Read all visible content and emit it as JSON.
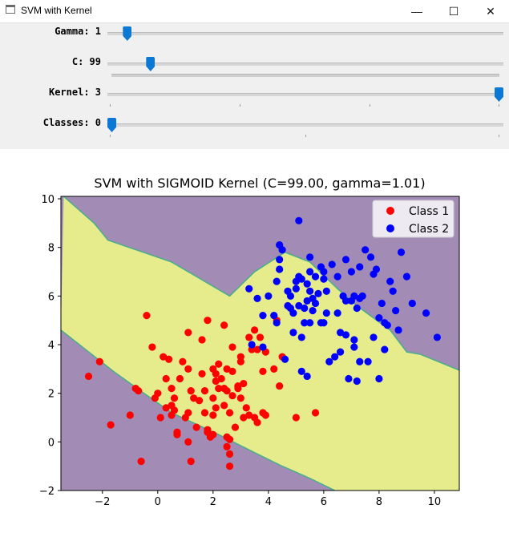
{
  "window": {
    "title": "SVM with Kernel",
    "minimize_glyph": "—",
    "maximize_glyph": "☐",
    "close_glyph": "✕"
  },
  "sliders": [
    {
      "label": "Gamma: 1",
      "fraction": 0.04
    },
    {
      "label": "C: 99",
      "fraction": 0.1
    },
    {
      "label": "Kernel: 3",
      "fraction": 1.0
    },
    {
      "label": "Classes: 0",
      "fraction": 0.0
    }
  ],
  "colors": {
    "accent": "#0a78d4",
    "region_purple": "#a28bb5",
    "region_yellow": "#e6ec8c",
    "boundary": "#4cae8c",
    "class1": "#ff0000",
    "class2": "#0000ff"
  },
  "chart_data": {
    "type": "scatter",
    "title": "SVM with SIGMOID Kernel (C=99.00, gamma=1.01)",
    "xlabel": "",
    "ylabel": "",
    "xlim": [
      -3.5,
      10.9
    ],
    "ylim": [
      -2.0,
      10.1
    ],
    "xticks": [
      -2,
      0,
      2,
      4,
      6,
      8,
      10
    ],
    "yticks": [
      -2,
      0,
      2,
      4,
      6,
      8,
      10
    ],
    "legend": {
      "position": "top-right",
      "entries": [
        "Class 1",
        "Class 2"
      ]
    },
    "regions": {
      "band_lower_boundary": [
        [
          -3.5,
          4.6
        ],
        [
          -1.6,
          2.9
        ],
        [
          -0.5,
          2.0
        ],
        [
          0.5,
          1.2
        ],
        [
          2.2,
          0.3
        ],
        [
          3.6,
          -0.5
        ],
        [
          4.5,
          -1.0
        ],
        [
          5.5,
          -1.5
        ],
        [
          6.4,
          -2.0
        ]
      ],
      "band_upper_boundary": [
        [
          -3.4,
          10.1
        ],
        [
          -2.3,
          9.0
        ],
        [
          -1.8,
          8.3
        ],
        [
          0.5,
          7.4
        ],
        [
          2.6,
          6.0
        ],
        [
          3.5,
          7.0
        ],
        [
          4.6,
          7.8
        ],
        [
          5.5,
          7.4
        ],
        [
          6.5,
          6.3
        ],
        [
          7.2,
          5.6
        ],
        [
          8.4,
          4.6
        ],
        [
          9.0,
          3.7
        ],
        [
          9.5,
          3.6
        ],
        [
          10.9,
          2.95
        ]
      ]
    },
    "series": [
      {
        "name": "Class 1",
        "color": "#ff0000",
        "points": [
          [
            -2.5,
            2.7
          ],
          [
            -2.1,
            3.3
          ],
          [
            -1.7,
            0.7
          ],
          [
            -1.0,
            1.1
          ],
          [
            -0.8,
            2.2
          ],
          [
            -0.7,
            2.1
          ],
          [
            -0.6,
            -0.8
          ],
          [
            -0.4,
            5.2
          ],
          [
            -0.2,
            3.9
          ],
          [
            -0.1,
            1.8
          ],
          [
            0.0,
            2.0
          ],
          [
            0.1,
            1.0
          ],
          [
            0.2,
            3.5
          ],
          [
            0.3,
            1.4
          ],
          [
            0.3,
            2.6
          ],
          [
            0.4,
            3.4
          ],
          [
            0.5,
            1.1
          ],
          [
            0.5,
            2.2
          ],
          [
            0.5,
            1.5
          ],
          [
            0.6,
            1.3
          ],
          [
            0.6,
            1.8
          ],
          [
            0.7,
            0.4
          ],
          [
            0.7,
            0.3
          ],
          [
            0.8,
            2.6
          ],
          [
            0.9,
            3.3
          ],
          [
            1.0,
            1.0
          ],
          [
            1.1,
            4.5
          ],
          [
            1.1,
            3.0
          ],
          [
            1.1,
            1.2
          ],
          [
            1.1,
            0.0
          ],
          [
            1.2,
            2.1
          ],
          [
            1.3,
            1.8
          ],
          [
            1.2,
            -0.8
          ],
          [
            1.4,
            0.6
          ],
          [
            1.5,
            1.7
          ],
          [
            1.6,
            2.8
          ],
          [
            1.7,
            2.1
          ],
          [
            1.7,
            1.2
          ],
          [
            1.8,
            0.4
          ],
          [
            1.8,
            0.5
          ],
          [
            2.0,
            1.8
          ],
          [
            2.0,
            0.3
          ],
          [
            1.9,
            0.2
          ],
          [
            2.0,
            1.1
          ],
          [
            2.0,
            3.0
          ],
          [
            2.1,
            1.4
          ],
          [
            2.1,
            2.5
          ],
          [
            2.1,
            2.8
          ],
          [
            2.2,
            3.2
          ],
          [
            2.2,
            2.2
          ],
          [
            2.3,
            2.6
          ],
          [
            2.4,
            2.2
          ],
          [
            2.4,
            1.5
          ],
          [
            2.5,
            0.2
          ],
          [
            2.5,
            3.0
          ],
          [
            2.5,
            -0.2
          ],
          [
            2.5,
            2.1
          ],
          [
            2.6,
            1.2
          ],
          [
            2.6,
            0.1
          ],
          [
            2.6,
            -0.5
          ],
          [
            2.6,
            -1.0
          ],
          [
            2.7,
            1.9
          ],
          [
            2.7,
            2.9
          ],
          [
            2.8,
            0.6
          ],
          [
            2.9,
            2.3
          ],
          [
            2.9,
            2.2
          ],
          [
            3.0,
            3.3
          ],
          [
            3.0,
            3.5
          ],
          [
            3.1,
            2.4
          ],
          [
            3.0,
            1.8
          ],
          [
            3.1,
            1.0
          ],
          [
            3.2,
            1.4
          ],
          [
            3.3,
            4.3
          ],
          [
            3.3,
            1.1
          ],
          [
            3.4,
            3.8
          ],
          [
            3.5,
            1.0
          ],
          [
            3.5,
            4.6
          ],
          [
            3.6,
            0.8
          ],
          [
            3.6,
            3.8
          ],
          [
            3.7,
            4.3
          ],
          [
            3.8,
            2.9
          ],
          [
            3.8,
            1.2
          ],
          [
            3.9,
            1.1
          ],
          [
            3.9,
            3.7
          ],
          [
            4.2,
            3.0
          ],
          [
            4.3,
            5.0
          ],
          [
            4.4,
            2.3
          ],
          [
            4.5,
            3.5
          ],
          [
            5.0,
            1.0
          ],
          [
            5.7,
            1.2
          ],
          [
            2.4,
            4.8
          ],
          [
            1.8,
            5.0
          ],
          [
            2.7,
            3.9
          ],
          [
            1.6,
            4.2
          ]
        ]
      },
      {
        "name": "Class 2",
        "color": "#0000ff",
        "points": [
          [
            3.3,
            6.3
          ],
          [
            3.6,
            5.9
          ],
          [
            3.8,
            3.9
          ],
          [
            3.8,
            5.2
          ],
          [
            4.0,
            6.0
          ],
          [
            4.2,
            5.2
          ],
          [
            4.3,
            4.9
          ],
          [
            4.3,
            6.6
          ],
          [
            4.4,
            7.1
          ],
          [
            4.4,
            7.5
          ],
          [
            4.4,
            8.1
          ],
          [
            4.5,
            7.9
          ],
          [
            4.6,
            3.4
          ],
          [
            4.7,
            5.6
          ],
          [
            4.7,
            6.2
          ],
          [
            4.8,
            6.0
          ],
          [
            4.9,
            5.3
          ],
          [
            4.9,
            4.5
          ],
          [
            5.0,
            6.6
          ],
          [
            5.0,
            6.3
          ],
          [
            5.1,
            6.8
          ],
          [
            5.1,
            5.6
          ],
          [
            5.1,
            9.1
          ],
          [
            5.2,
            6.7
          ],
          [
            5.2,
            4.3
          ],
          [
            5.2,
            2.9
          ],
          [
            5.3,
            5.5
          ],
          [
            5.3,
            4.9
          ],
          [
            5.4,
            6.5
          ],
          [
            5.4,
            5.8
          ],
          [
            5.4,
            2.7
          ],
          [
            5.5,
            7.0
          ],
          [
            5.5,
            6.2
          ],
          [
            5.5,
            4.9
          ],
          [
            5.5,
            7.6
          ],
          [
            5.6,
            5.4
          ],
          [
            5.7,
            5.7
          ],
          [
            5.7,
            6.8
          ],
          [
            5.8,
            6.1
          ],
          [
            5.9,
            7.2
          ],
          [
            5.9,
            4.9
          ],
          [
            6.0,
            4.9
          ],
          [
            6.0,
            6.7
          ],
          [
            6.0,
            7.0
          ],
          [
            6.1,
            6.2
          ],
          [
            6.2,
            3.3
          ],
          [
            6.4,
            3.5
          ],
          [
            6.5,
            5.3
          ],
          [
            6.6,
            4.5
          ],
          [
            6.6,
            3.7
          ],
          [
            6.7,
            6.0
          ],
          [
            6.8,
            5.8
          ],
          [
            6.8,
            4.4
          ],
          [
            6.8,
            7.5
          ],
          [
            6.9,
            2.6
          ],
          [
            7.0,
            5.8
          ],
          [
            7.1,
            3.9
          ],
          [
            7.1,
            6.0
          ],
          [
            7.1,
            4.2
          ],
          [
            7.2,
            5.5
          ],
          [
            7.2,
            2.5
          ],
          [
            7.3,
            3.3
          ],
          [
            7.3,
            7.2
          ],
          [
            7.3,
            5.9
          ],
          [
            7.4,
            6.0
          ],
          [
            7.5,
            7.9
          ],
          [
            7.6,
            3.3
          ],
          [
            7.7,
            7.6
          ],
          [
            7.8,
            4.3
          ],
          [
            7.9,
            7.1
          ],
          [
            8.1,
            5.7
          ],
          [
            8.2,
            4.9
          ],
          [
            8.2,
            3.8
          ],
          [
            8.4,
            6.6
          ],
          [
            8.5,
            6.2
          ],
          [
            8.6,
            5.4
          ],
          [
            8.7,
            4.6
          ],
          [
            8.8,
            7.8
          ],
          [
            9.0,
            6.8
          ],
          [
            9.2,
            5.7
          ],
          [
            9.7,
            5.3
          ],
          [
            10.1,
            4.3
          ],
          [
            8.0,
            5.1
          ],
          [
            8.3,
            4.8
          ],
          [
            6.3,
            7.3
          ],
          [
            7.0,
            7.0
          ],
          [
            8.0,
            2.6
          ],
          [
            6.5,
            6.8
          ],
          [
            7.8,
            6.9
          ],
          [
            4.8,
            5.5
          ],
          [
            3.4,
            4.0
          ],
          [
            5.6,
            5.9
          ],
          [
            6.1,
            5.3
          ]
        ]
      }
    ]
  }
}
